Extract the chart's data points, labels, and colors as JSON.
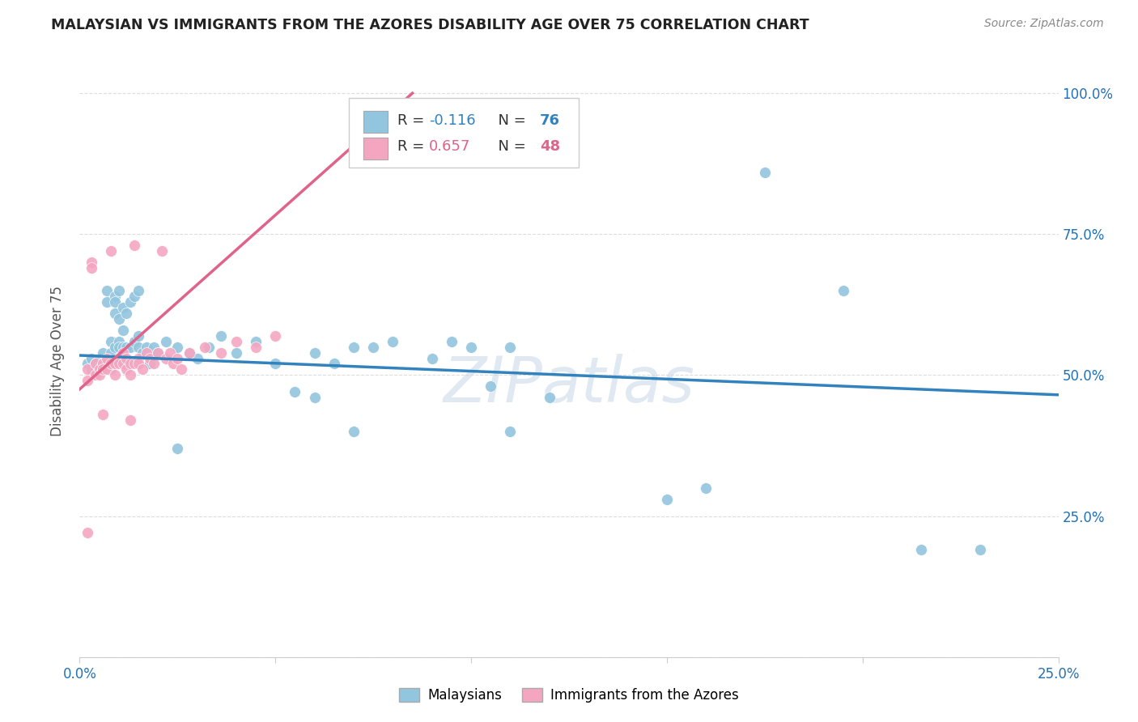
{
  "title": "MALAYSIAN VS IMMIGRANTS FROM THE AZORES DISABILITY AGE OVER 75 CORRELATION CHART",
  "source": "Source: ZipAtlas.com",
  "ylabel": "Disability Age Over 75",
  "xlim": [
    0.0,
    0.25
  ],
  "ylim": [
    0.0,
    1.05
  ],
  "xticks": [
    0.0,
    0.05,
    0.1,
    0.15,
    0.2,
    0.25
  ],
  "xticklabels": [
    "0.0%",
    "",
    "",
    "",
    "",
    "25.0%"
  ],
  "yticks": [
    0.0,
    0.25,
    0.5,
    0.75,
    1.0
  ],
  "yticklabels_right": [
    "",
    "25.0%",
    "50.0%",
    "75.0%",
    "100.0%"
  ],
  "legend_blue_r": "R = -0.116",
  "legend_blue_n": "N = 76",
  "legend_pink_r": "R = 0.657",
  "legend_pink_n": "N = 48",
  "blue_color": "#92c5de",
  "pink_color": "#f4a6c0",
  "blue_line_color": "#3182bd",
  "pink_line_color": "#e0638a",
  "watermark": "ZIPatlas",
  "blue_scatter": [
    [
      0.002,
      0.52
    ],
    [
      0.003,
      0.53
    ],
    [
      0.003,
      0.51
    ],
    [
      0.004,
      0.52
    ],
    [
      0.004,
      0.51
    ],
    [
      0.005,
      0.53
    ],
    [
      0.005,
      0.51
    ],
    [
      0.006,
      0.54
    ],
    [
      0.006,
      0.52
    ],
    [
      0.007,
      0.65
    ],
    [
      0.007,
      0.63
    ],
    [
      0.007,
      0.52
    ],
    [
      0.008,
      0.56
    ],
    [
      0.008,
      0.54
    ],
    [
      0.008,
      0.51
    ],
    [
      0.009,
      0.64
    ],
    [
      0.009,
      0.63
    ],
    [
      0.009,
      0.61
    ],
    [
      0.009,
      0.55
    ],
    [
      0.009,
      0.52
    ],
    [
      0.01,
      0.65
    ],
    [
      0.01,
      0.6
    ],
    [
      0.01,
      0.56
    ],
    [
      0.01,
      0.55
    ],
    [
      0.01,
      0.53
    ],
    [
      0.011,
      0.62
    ],
    [
      0.011,
      0.58
    ],
    [
      0.011,
      0.55
    ],
    [
      0.011,
      0.53
    ],
    [
      0.012,
      0.61
    ],
    [
      0.012,
      0.55
    ],
    [
      0.012,
      0.52
    ],
    [
      0.013,
      0.63
    ],
    [
      0.013,
      0.55
    ],
    [
      0.013,
      0.52
    ],
    [
      0.014,
      0.64
    ],
    [
      0.014,
      0.56
    ],
    [
      0.015,
      0.65
    ],
    [
      0.015,
      0.57
    ],
    [
      0.015,
      0.55
    ],
    [
      0.016,
      0.54
    ],
    [
      0.017,
      0.55
    ],
    [
      0.018,
      0.52
    ],
    [
      0.019,
      0.55
    ],
    [
      0.02,
      0.54
    ],
    [
      0.022,
      0.56
    ],
    [
      0.025,
      0.55
    ],
    [
      0.028,
      0.54
    ],
    [
      0.03,
      0.53
    ],
    [
      0.033,
      0.55
    ],
    [
      0.036,
      0.57
    ],
    [
      0.04,
      0.54
    ],
    [
      0.045,
      0.56
    ],
    [
      0.05,
      0.52
    ],
    [
      0.055,
      0.47
    ],
    [
      0.06,
      0.54
    ],
    [
      0.065,
      0.52
    ],
    [
      0.07,
      0.55
    ],
    [
      0.075,
      0.55
    ],
    [
      0.08,
      0.56
    ],
    [
      0.09,
      0.53
    ],
    [
      0.095,
      0.56
    ],
    [
      0.1,
      0.55
    ],
    [
      0.105,
      0.48
    ],
    [
      0.11,
      0.55
    ],
    [
      0.12,
      0.46
    ],
    [
      0.025,
      0.37
    ],
    [
      0.06,
      0.46
    ],
    [
      0.07,
      0.4
    ],
    [
      0.11,
      0.4
    ],
    [
      0.15,
      0.28
    ],
    [
      0.16,
      0.3
    ],
    [
      0.175,
      0.86
    ],
    [
      0.195,
      0.65
    ],
    [
      0.215,
      0.19
    ],
    [
      0.23,
      0.19
    ]
  ],
  "pink_scatter": [
    [
      0.002,
      0.51
    ],
    [
      0.002,
      0.49
    ],
    [
      0.003,
      0.7
    ],
    [
      0.003,
      0.69
    ],
    [
      0.004,
      0.5
    ],
    [
      0.004,
      0.52
    ],
    [
      0.005,
      0.51
    ],
    [
      0.005,
      0.5
    ],
    [
      0.006,
      0.52
    ],
    [
      0.006,
      0.51
    ],
    [
      0.007,
      0.53
    ],
    [
      0.007,
      0.51
    ],
    [
      0.008,
      0.72
    ],
    [
      0.008,
      0.52
    ],
    [
      0.009,
      0.52
    ],
    [
      0.009,
      0.5
    ],
    [
      0.01,
      0.53
    ],
    [
      0.01,
      0.52
    ],
    [
      0.011,
      0.54
    ],
    [
      0.011,
      0.52
    ],
    [
      0.012,
      0.51
    ],
    [
      0.012,
      0.53
    ],
    [
      0.013,
      0.52
    ],
    [
      0.013,
      0.5
    ],
    [
      0.014,
      0.73
    ],
    [
      0.014,
      0.52
    ],
    [
      0.015,
      0.53
    ],
    [
      0.015,
      0.52
    ],
    [
      0.016,
      0.51
    ],
    [
      0.017,
      0.54
    ],
    [
      0.018,
      0.53
    ],
    [
      0.019,
      0.52
    ],
    [
      0.02,
      0.54
    ],
    [
      0.021,
      0.72
    ],
    [
      0.022,
      0.53
    ],
    [
      0.023,
      0.54
    ],
    [
      0.024,
      0.52
    ],
    [
      0.025,
      0.53
    ],
    [
      0.026,
      0.51
    ],
    [
      0.028,
      0.54
    ],
    [
      0.032,
      0.55
    ],
    [
      0.036,
      0.54
    ],
    [
      0.04,
      0.56
    ],
    [
      0.045,
      0.55
    ],
    [
      0.05,
      0.57
    ],
    [
      0.002,
      0.22
    ],
    [
      0.006,
      0.43
    ],
    [
      0.013,
      0.42
    ]
  ],
  "blue_trendline_x": [
    0.0,
    0.25
  ],
  "blue_trendline_y": [
    0.535,
    0.465
  ],
  "pink_trendline_x": [
    0.0,
    0.085
  ],
  "pink_trendline_y": [
    0.475,
    1.0
  ]
}
